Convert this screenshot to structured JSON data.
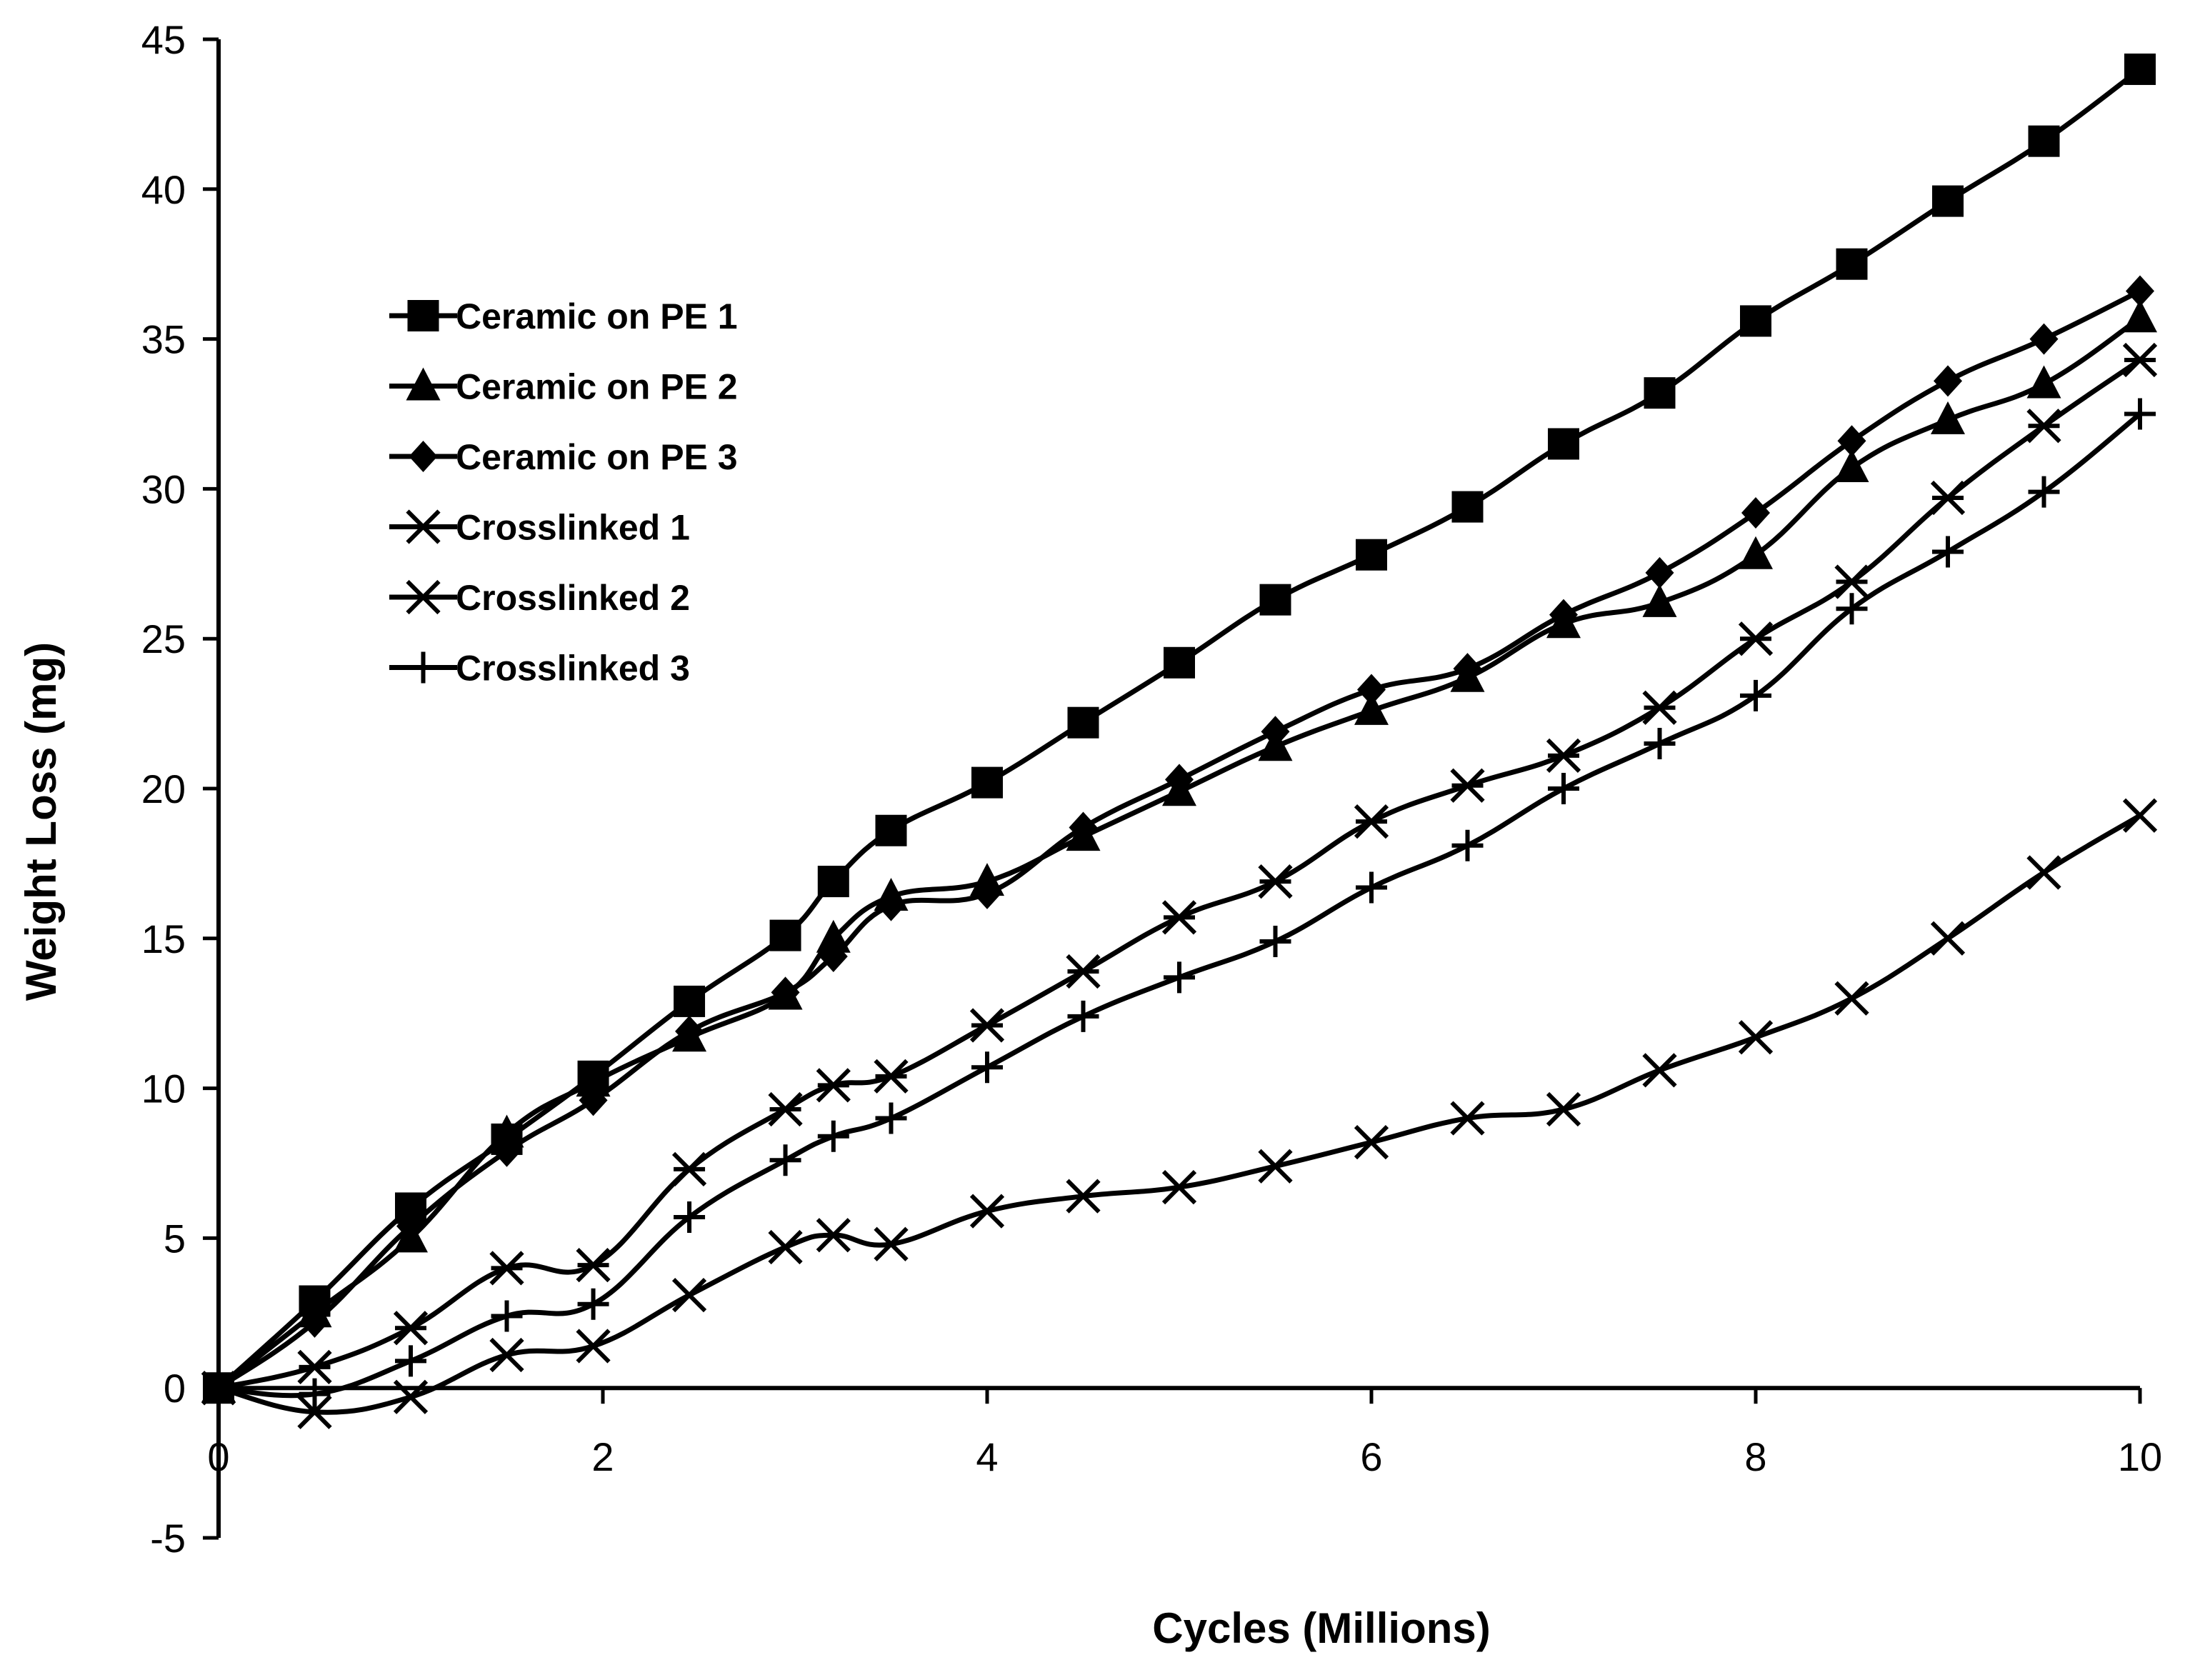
{
  "chart_data": {
    "type": "line",
    "title": "",
    "xlabel": "Cycles (Millions)",
    "ylabel": "Weight Loss (mg)",
    "xlim": [
      0,
      10
    ],
    "ylim": [
      -5,
      45
    ],
    "xticks": [
      0,
      2,
      4,
      6,
      8,
      10
    ],
    "yticks": [
      -5,
      0,
      5,
      10,
      15,
      20,
      25,
      30,
      35,
      40,
      45
    ],
    "grid": false,
    "legend_position": "upper-left",
    "line_color": "#000000",
    "series": [
      {
        "name": "Ceramic on PE 1",
        "marker": "square",
        "x": [
          0,
          0.5,
          1,
          1.5,
          1.95,
          2.45,
          2.95,
          3.2,
          3.5,
          4,
          4.5,
          5,
          5.5,
          6,
          6.5,
          7,
          7.5,
          8,
          8.5,
          9,
          9.5,
          10
        ],
        "y": [
          0,
          2.9,
          6.0,
          8.3,
          10.4,
          12.9,
          15.1,
          16.9,
          18.6,
          20.2,
          22.2,
          24.2,
          26.3,
          27.8,
          29.4,
          31.5,
          33.2,
          35.6,
          37.5,
          39.6,
          41.6,
          44.0
        ]
      },
      {
        "name": "Ceramic on PE 2",
        "marker": "triangle",
        "x": [
          0,
          0.5,
          1,
          1.5,
          1.95,
          2.45,
          2.95,
          3.2,
          3.5,
          4,
          4.5,
          5,
          5.5,
          6,
          6.5,
          7,
          7.5,
          8,
          8.5,
          9,
          9.5,
          10
        ],
        "y": [
          0,
          2.5,
          5.0,
          8.5,
          10.2,
          11.7,
          13.1,
          15.0,
          16.4,
          16.9,
          18.4,
          19.9,
          21.4,
          22.6,
          23.7,
          25.5,
          26.2,
          27.8,
          30.7,
          32.3,
          33.5,
          35.7
        ]
      },
      {
        "name": "Ceramic on PE 3",
        "marker": "diamond",
        "x": [
          0,
          0.5,
          1,
          1.5,
          1.95,
          2.45,
          2.95,
          3.2,
          3.5,
          4,
          4.5,
          5,
          5.5,
          6,
          6.5,
          7,
          7.5,
          8,
          8.5,
          9,
          9.5,
          10
        ],
        "y": [
          0,
          2.2,
          5.4,
          7.9,
          9.6,
          11.9,
          13.2,
          14.4,
          16.1,
          16.5,
          18.7,
          20.3,
          21.9,
          23.3,
          24.0,
          25.8,
          27.2,
          29.2,
          31.6,
          33.6,
          35.0,
          36.6
        ]
      },
      {
        "name": "Crosslinked 1",
        "marker": "asterisk",
        "x": [
          0,
          0.5,
          1,
          1.5,
          1.95,
          2.45,
          2.95,
          3.2,
          3.5,
          4,
          4.5,
          5,
          5.5,
          6,
          6.5,
          7,
          7.5,
          8,
          8.5,
          9,
          9.5,
          10
        ],
        "y": [
          0,
          0.7,
          2.0,
          4.0,
          4.1,
          7.3,
          9.3,
          10.1,
          10.4,
          12.1,
          13.9,
          15.7,
          16.9,
          18.9,
          20.1,
          21.1,
          22.7,
          25.0,
          26.9,
          29.7,
          32.1,
          34.3
        ]
      },
      {
        "name": "Crosslinked 2",
        "marker": "x",
        "x": [
          0,
          0.5,
          1,
          1.5,
          1.95,
          2.45,
          2.95,
          3.2,
          3.5,
          4,
          4.5,
          5,
          5.5,
          6,
          6.5,
          7,
          7.5,
          8,
          8.5,
          9,
          9.5,
          10
        ],
        "y": [
          0,
          -0.8,
          -0.3,
          1.1,
          1.4,
          3.1,
          4.7,
          5.1,
          4.8,
          5.9,
          6.4,
          6.7,
          7.4,
          8.2,
          9.0,
          9.3,
          10.6,
          11.7,
          13.0,
          15.0,
          17.2,
          19.1
        ]
      },
      {
        "name": "Crosslinked 3",
        "marker": "plus",
        "x": [
          0,
          0.5,
          1,
          1.5,
          1.95,
          2.45,
          2.95,
          3.2,
          3.5,
          4,
          4.5,
          5,
          5.5,
          6,
          6.5,
          7,
          7.5,
          8,
          8.5,
          9,
          9.5,
          10
        ],
        "y": [
          0,
          -0.2,
          0.9,
          2.4,
          2.8,
          5.7,
          7.6,
          8.4,
          9.0,
          10.7,
          12.4,
          13.7,
          14.9,
          16.7,
          18.1,
          20.0,
          21.5,
          23.1,
          26.0,
          27.9,
          29.9,
          32.5
        ]
      }
    ]
  }
}
